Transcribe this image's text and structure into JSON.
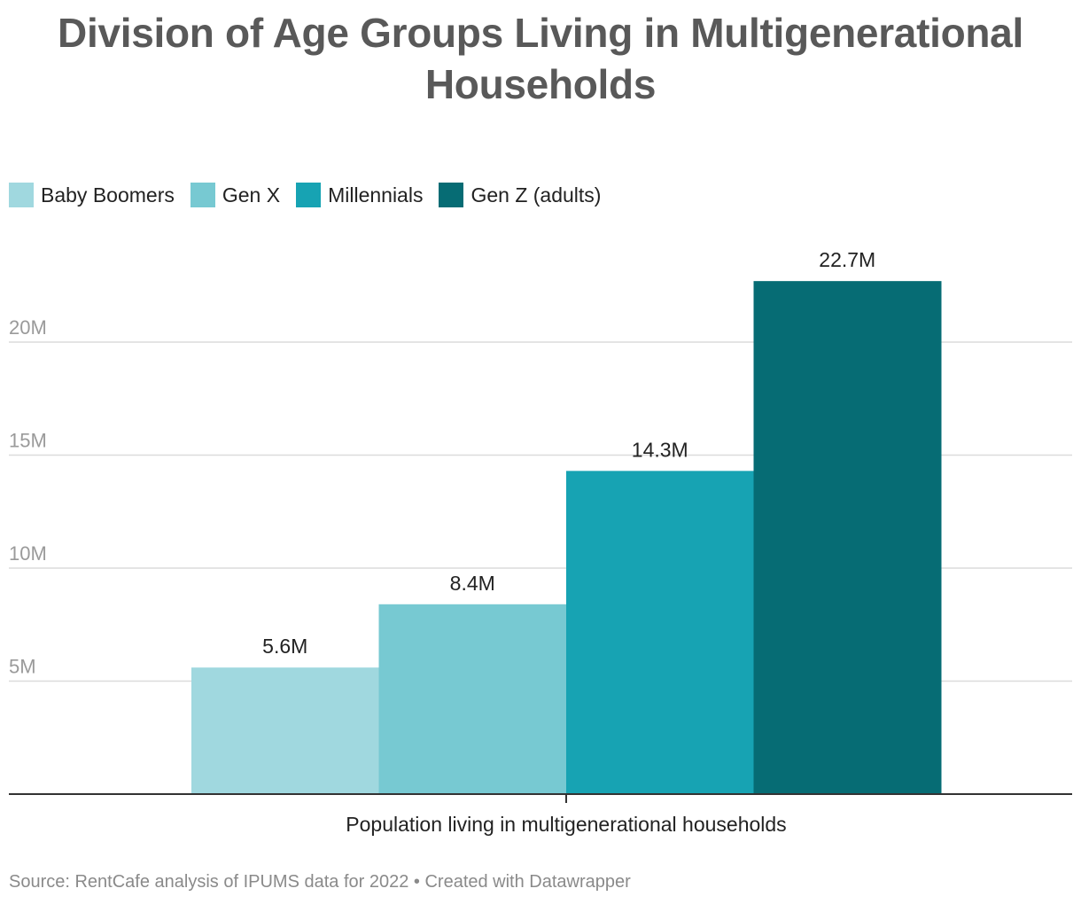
{
  "title": "Division of Age Groups Living in Multigenerational Households",
  "legend": [
    {
      "label": "Baby Boomers",
      "color": "#a0d8df"
    },
    {
      "label": "Gen X",
      "color": "#77c9d2"
    },
    {
      "label": "Millennials",
      "color": "#17a3b3"
    },
    {
      "label": "Gen Z (adults)",
      "color": "#066c74"
    }
  ],
  "chart_data": {
    "type": "bar",
    "categories": [
      "Population living in multigenerational households"
    ],
    "series": [
      {
        "name": "Baby Boomers",
        "values": [
          5.6
        ],
        "label": "5.6M",
        "color": "#a0d8df"
      },
      {
        "name": "Gen X",
        "values": [
          8.4
        ],
        "label": "8.4M",
        "color": "#77c9d2"
      },
      {
        "name": "Millennials",
        "values": [
          14.3
        ],
        "label": "14.3M",
        "color": "#17a3b3"
      },
      {
        "name": "Gen Z (adults)",
        "values": [
          22.7
        ],
        "label": "22.7M",
        "color": "#066c74"
      }
    ],
    "yticks": [
      {
        "value": 5,
        "label": "5M"
      },
      {
        "value": 10,
        "label": "10M"
      },
      {
        "value": 15,
        "label": "15M"
      },
      {
        "value": 20,
        "label": "20M"
      }
    ],
    "ylim": [
      0,
      25
    ],
    "grid": true,
    "legend_position": "top-left"
  },
  "source": "Source: RentCafe analysis of IPUMS data for 2022 • Created with Datawrapper"
}
